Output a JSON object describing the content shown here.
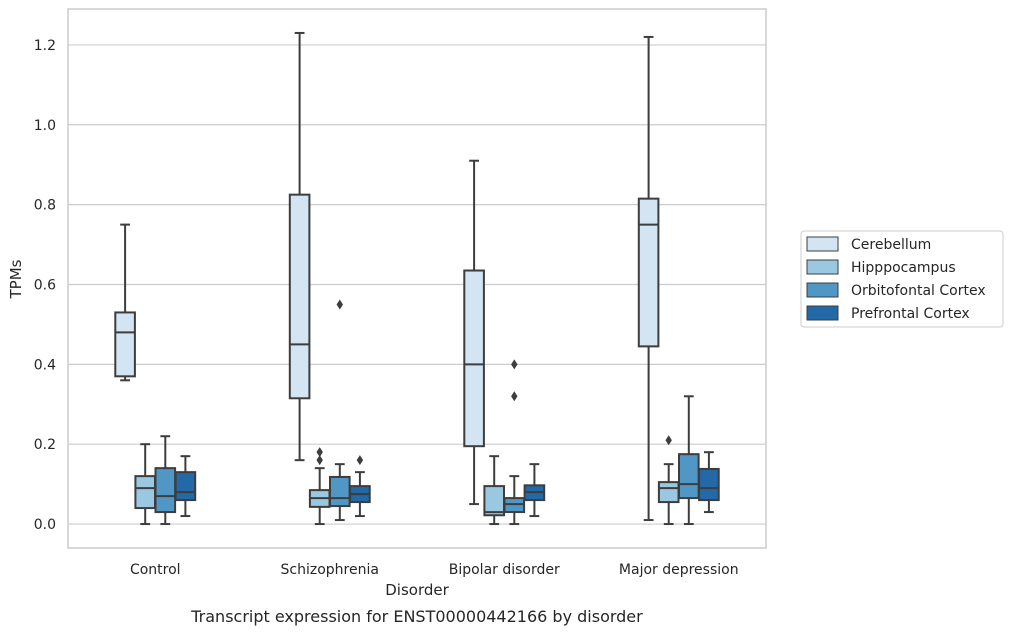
{
  "chart_data": {
    "type": "box",
    "caption": "Transcript expression for ENST00000442166 by disorder",
    "xlabel": "Disorder",
    "ylabel": "TPMs",
    "ylim": [
      -0.06,
      1.29
    ],
    "yticks": [
      "0.0",
      "0.2",
      "0.4",
      "0.6",
      "0.8",
      "1.0",
      "1.2"
    ],
    "grid": true,
    "legend_position": "center-right",
    "categories": [
      "Control",
      "Schizophrenia",
      "Bipolar disorder",
      "Major depression"
    ],
    "series": [
      {
        "name": "Cerebellum",
        "color": "#d3e4f3",
        "boxes": [
          {
            "whislo": 0.36,
            "q1": 0.37,
            "med": 0.48,
            "q3": 0.53,
            "whishi": 0.75,
            "fliers": []
          },
          {
            "whislo": 0.16,
            "q1": 0.315,
            "med": 0.45,
            "q3": 0.825,
            "whishi": 1.23,
            "fliers": []
          },
          {
            "whislo": 0.05,
            "q1": 0.195,
            "med": 0.4,
            "q3": 0.635,
            "whishi": 0.91,
            "fliers": []
          },
          {
            "whislo": 0.01,
            "q1": 0.445,
            "med": 0.75,
            "q3": 0.815,
            "whishi": 1.22,
            "fliers": []
          }
        ]
      },
      {
        "name": "Hipppocampus",
        "color": "#9ac8e0",
        "boxes": [
          {
            "whislo": 0.0,
            "q1": 0.04,
            "med": 0.09,
            "q3": 0.12,
            "whishi": 0.2,
            "fliers": []
          },
          {
            "whislo": 0.0,
            "q1": 0.043,
            "med": 0.065,
            "q3": 0.085,
            "whishi": 0.14,
            "fliers": [
              0.16,
              0.18
            ]
          },
          {
            "whislo": 0.0,
            "q1": 0.022,
            "med": 0.03,
            "q3": 0.095,
            "whishi": 0.17,
            "fliers": []
          },
          {
            "whislo": 0.0,
            "q1": 0.055,
            "med": 0.09,
            "q3": 0.105,
            "whishi": 0.15,
            "fliers": [
              0.21
            ]
          }
        ]
      },
      {
        "name": "Orbitofontal Cortex",
        "color": "#5197c6",
        "boxes": [
          {
            "whislo": 0.0,
            "q1": 0.03,
            "med": 0.07,
            "q3": 0.14,
            "whishi": 0.22,
            "fliers": []
          },
          {
            "whislo": 0.01,
            "q1": 0.045,
            "med": 0.065,
            "q3": 0.118,
            "whishi": 0.15,
            "fliers": [
              0.55
            ]
          },
          {
            "whislo": 0.0,
            "q1": 0.03,
            "med": 0.05,
            "q3": 0.065,
            "whishi": 0.12,
            "fliers": [
              0.32,
              0.4
            ]
          },
          {
            "whislo": 0.0,
            "q1": 0.065,
            "med": 0.1,
            "q3": 0.175,
            "whishi": 0.32,
            "fliers": []
          }
        ]
      },
      {
        "name": "Prefrontal Cortex",
        "color": "#2369a8",
        "boxes": [
          {
            "whislo": 0.02,
            "q1": 0.06,
            "med": 0.08,
            "q3": 0.13,
            "whishi": 0.17,
            "fliers": []
          },
          {
            "whislo": 0.02,
            "q1": 0.055,
            "med": 0.075,
            "q3": 0.095,
            "whishi": 0.13,
            "fliers": [
              0.16
            ]
          },
          {
            "whislo": 0.02,
            "q1": 0.06,
            "med": 0.08,
            "q3": 0.097,
            "whishi": 0.15,
            "fliers": []
          },
          {
            "whislo": 0.03,
            "q1": 0.06,
            "med": 0.09,
            "q3": 0.138,
            "whishi": 0.18,
            "fliers": []
          }
        ]
      }
    ]
  }
}
